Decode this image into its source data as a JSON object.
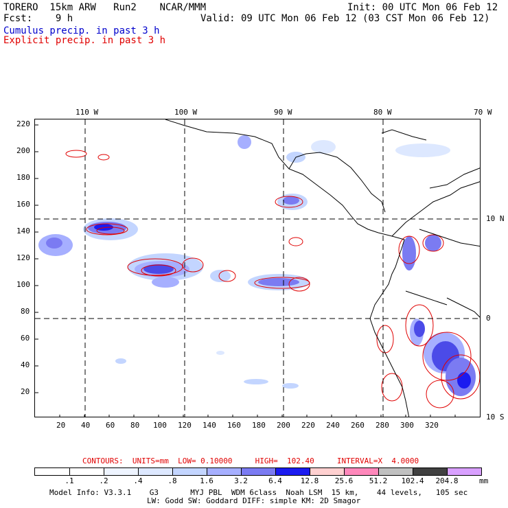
{
  "header": {
    "model_line": "TORERO  15km ARW   Run2    NCAR/MMM",
    "init_line": "Init: 00 UTC Mon 06 Feb 12",
    "fcst_line": "Fcst:    9 h",
    "valid_line": "Valid: 09 UTC Mon 06 Feb 12 (03 CST Mon 06 Feb 12)",
    "field1": "Cumulus precip. in past 3 h",
    "field2": "Explicit precip. in past 3 h"
  },
  "map": {
    "top_lon_labels": [
      "110 W",
      "100 W",
      "90 W",
      "80 W",
      "70 W"
    ],
    "right_lat_labels": [
      "10 N",
      "0",
      "10 S"
    ],
    "left_ticks": [
      "220",
      "200",
      "180",
      "160",
      "140",
      "120",
      "100",
      "80",
      "60",
      "40",
      "20"
    ],
    "bottom_ticks": [
      "20",
      "40",
      "60",
      "80",
      "100",
      "120",
      "140",
      "160",
      "180",
      "200",
      "220",
      "240",
      "260",
      "280",
      "300",
      "320"
    ]
  },
  "contours_line": {
    "label": "CONTOURS:  UNITS=mm  LOW= 0.10000     HIGH=  102.40     INTERVAL=X  4.0000"
  },
  "legend": {
    "values": [
      ".1",
      ".2",
      ".4",
      ".8",
      "1.6",
      "3.2",
      "6.4",
      "12.8",
      "25.6",
      "51.2",
      "102.4",
      "204.8"
    ],
    "unit": "mm",
    "colors": [
      "#ffffff",
      "#ffffff",
      "#eef4ff",
      "#dde8ff",
      "#c3d5ff",
      "#a6afff",
      "#7b7bf2",
      "#4b4be8",
      "#1b1bf0",
      "#ffd0d0",
      "#ff88bb",
      "#c0c0c0",
      "#404040",
      "#d9a0ff"
    ]
  },
  "footer": {
    "line1": "Model Info: V3.3.1    G3       MYJ PBL  WDM 6class  Noah LSM  15 km,    44 levels,   105 sec",
    "line2": "LW: Godd SW: Goddard DIFF: simple KM: 2D Smagor"
  }
}
